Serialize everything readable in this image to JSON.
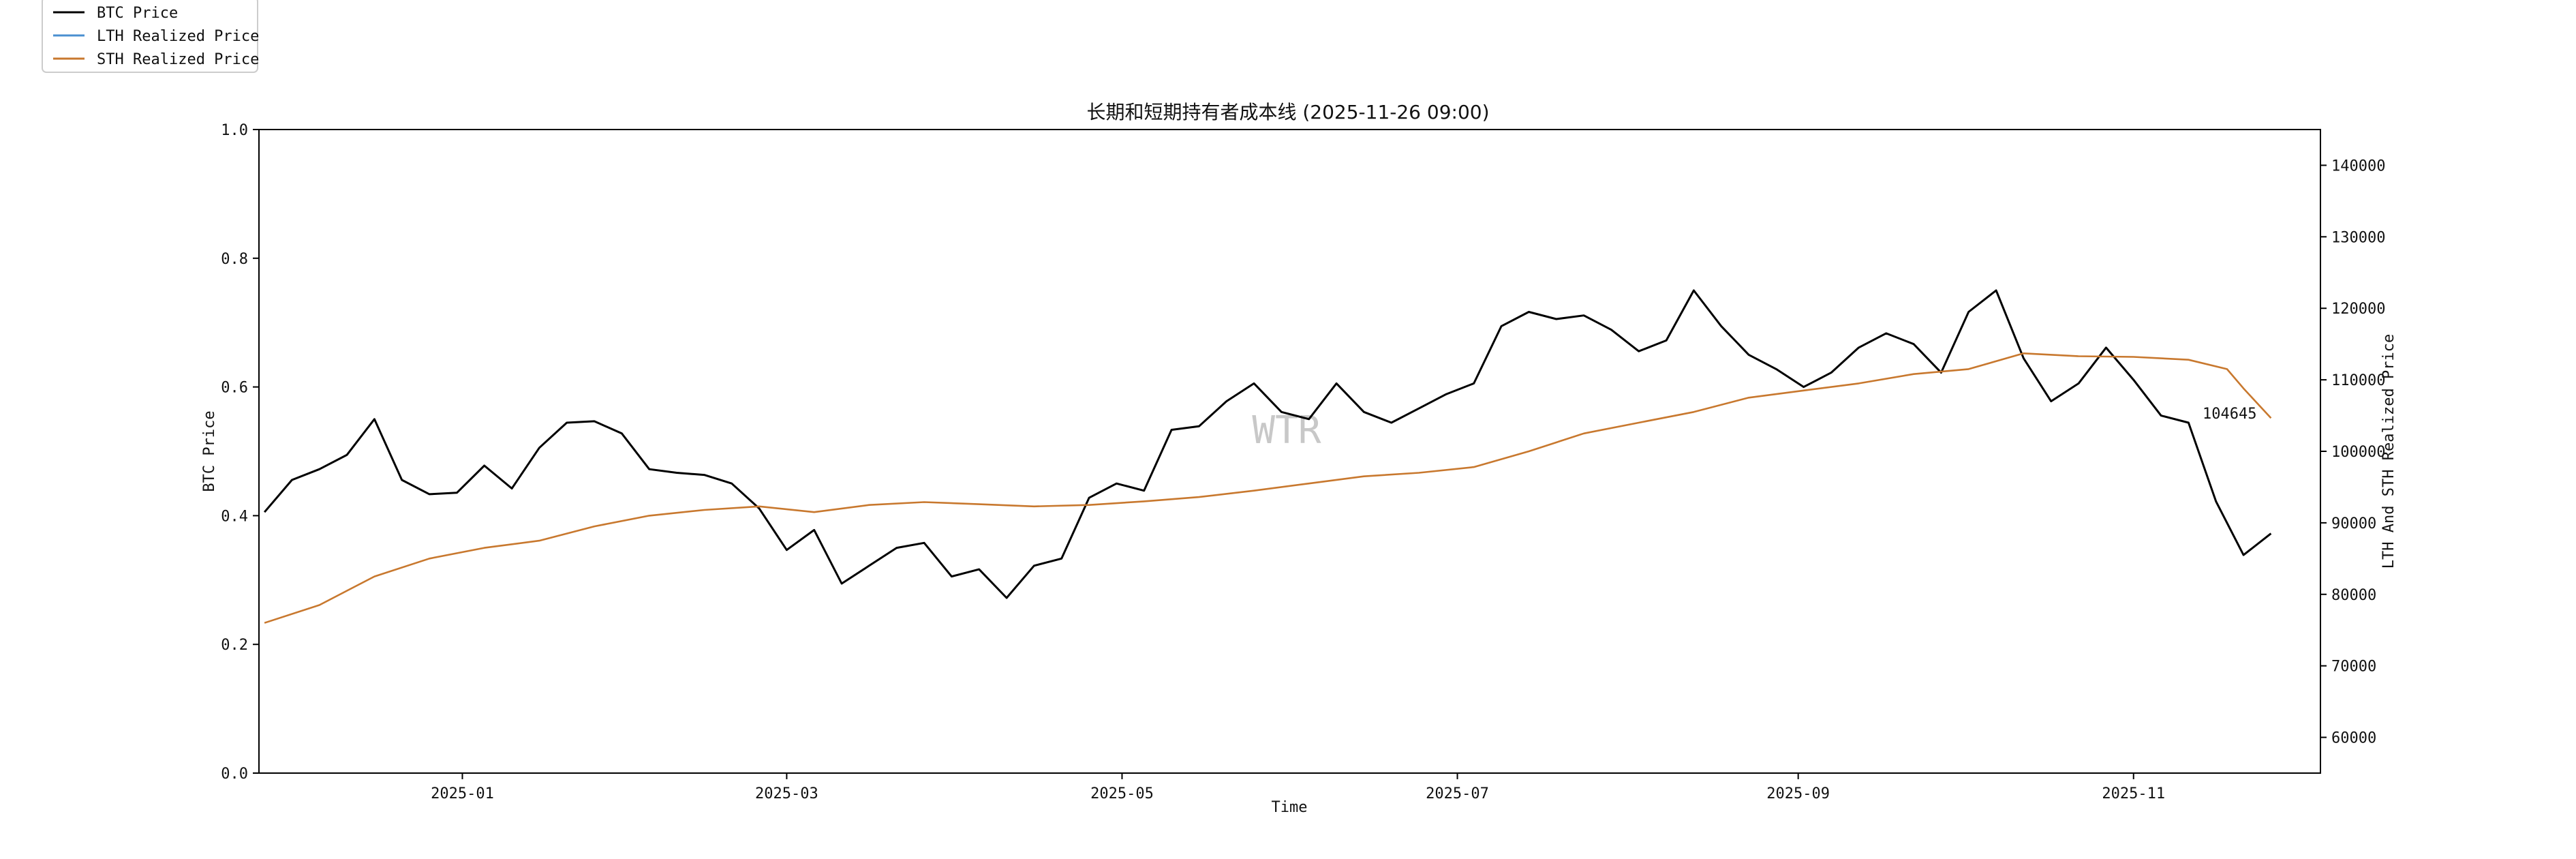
{
  "chart_data": {
    "type": "line",
    "title": "长期和短期持有者成本线 (2025-11-26 09:00)",
    "xlabel": "Time",
    "ylabel_left": "BTC Price",
    "ylabel_right": "LTH And STH Realized Price",
    "x_range": [
      "2024-11-25",
      "2025-12-05"
    ],
    "x_ticks": [
      "2025-01",
      "2025-03",
      "2025-05",
      "2025-07",
      "2025-09",
      "2025-11"
    ],
    "ylim_left": [
      0.0,
      1.0
    ],
    "yticks_left": [
      "0.0",
      "0.2",
      "0.4",
      "0.6",
      "0.8",
      "1.0"
    ],
    "ylim_right": [
      55000,
      145000
    ],
    "yticks_right": [
      "60000",
      "70000",
      "80000",
      "90000",
      "100000",
      "110000",
      "120000",
      "130000",
      "140000"
    ],
    "grid": false,
    "legend_position": "top-left",
    "watermark": "WTR",
    "annotation": "104645",
    "series": [
      {
        "name": "BTC Price",
        "color": "#000000",
        "x": [
          "2024-11-26",
          "2024-12-01",
          "2024-12-06",
          "2024-12-11",
          "2024-12-16",
          "2024-12-21",
          "2024-12-26",
          "2024-12-31",
          "2025-01-05",
          "2025-01-10",
          "2025-01-15",
          "2025-01-20",
          "2025-01-25",
          "2025-01-30",
          "2025-02-04",
          "2025-02-09",
          "2025-02-14",
          "2025-02-19",
          "2025-02-24",
          "2025-03-01",
          "2025-03-06",
          "2025-03-11",
          "2025-03-16",
          "2025-03-21",
          "2025-03-26",
          "2025-03-31",
          "2025-04-05",
          "2025-04-10",
          "2025-04-15",
          "2025-04-20",
          "2025-04-25",
          "2025-04-30",
          "2025-05-05",
          "2025-05-10",
          "2025-05-15",
          "2025-05-20",
          "2025-05-25",
          "2025-05-30",
          "2025-06-04",
          "2025-06-09",
          "2025-06-14",
          "2025-06-19",
          "2025-06-24",
          "2025-06-29",
          "2025-07-04",
          "2025-07-09",
          "2025-07-14",
          "2025-07-19",
          "2025-07-24",
          "2025-07-29",
          "2025-08-03",
          "2025-08-08",
          "2025-08-13",
          "2025-08-18",
          "2025-08-23",
          "2025-08-28",
          "2025-09-02",
          "2025-09-07",
          "2025-09-12",
          "2025-09-17",
          "2025-09-22",
          "2025-09-27",
          "2025-10-02",
          "2025-10-07",
          "2025-10-12",
          "2025-10-17",
          "2025-10-22",
          "2025-10-27",
          "2025-11-01",
          "2025-11-06",
          "2025-11-11",
          "2025-11-16",
          "2025-11-21",
          "2025-11-26"
        ],
        "values": [
          91500,
          96000,
          97500,
          99500,
          104500,
          96000,
          94000,
          94200,
          98000,
          94800,
          100500,
          104000,
          104200,
          102500,
          97500,
          97000,
          96700,
          95500,
          92000,
          86200,
          89000,
          81500,
          84000,
          86500,
          87200,
          82500,
          83500,
          79500,
          84000,
          85000,
          93500,
          95500,
          94500,
          103000,
          103500,
          107000,
          109500,
          105500,
          104500,
          109500,
          105500,
          104000,
          106000,
          108000,
          109500,
          117500,
          119500,
          118500,
          119000,
          117000,
          114000,
          115500,
          122500,
          117500,
          113500,
          111500,
          109000,
          111000,
          114500,
          116500,
          115000,
          111000,
          119500,
          122500,
          113000,
          107000,
          109500,
          114500,
          110000,
          105000,
          104000,
          93000,
          85500,
          88500
        ]
      },
      {
        "name": "LTH Realized Price",
        "color": "#4a8fd0",
        "x": [],
        "values": []
      },
      {
        "name": "STH Realized Price",
        "color": "#c8782e",
        "x": [
          "2024-11-26",
          "2024-12-06",
          "2024-12-16",
          "2024-12-26",
          "2025-01-05",
          "2025-01-15",
          "2025-01-25",
          "2025-02-04",
          "2025-02-14",
          "2025-02-24",
          "2025-03-06",
          "2025-03-16",
          "2025-03-26",
          "2025-04-05",
          "2025-04-15",
          "2025-04-25",
          "2025-05-05",
          "2025-05-15",
          "2025-05-25",
          "2025-06-04",
          "2025-06-14",
          "2025-06-24",
          "2025-07-04",
          "2025-07-14",
          "2025-07-24",
          "2025-08-03",
          "2025-08-13",
          "2025-08-23",
          "2025-09-02",
          "2025-09-12",
          "2025-09-22",
          "2025-10-02",
          "2025-10-12",
          "2025-10-22",
          "2025-11-01",
          "2025-11-11",
          "2025-11-18",
          "2025-11-21",
          "2025-11-26"
        ],
        "values": [
          76000,
          78500,
          82500,
          85000,
          86500,
          87500,
          89500,
          91000,
          91800,
          92300,
          91500,
          92500,
          92900,
          92600,
          92300,
          92500,
          93000,
          93600,
          94500,
          95500,
          96500,
          97000,
          97800,
          100000,
          102500,
          104000,
          105500,
          107500,
          108500,
          109500,
          110800,
          111500,
          113700,
          113300,
          113200,
          112800,
          111500,
          108800,
          104645
        ]
      }
    ]
  },
  "legend": {
    "items": [
      {
        "label": "BTC Price",
        "color": "#000000"
      },
      {
        "label": "LTH Realized Price",
        "color": "#4a8fd0"
      },
      {
        "label": "STH Realized Price",
        "color": "#c8782e"
      }
    ]
  }
}
